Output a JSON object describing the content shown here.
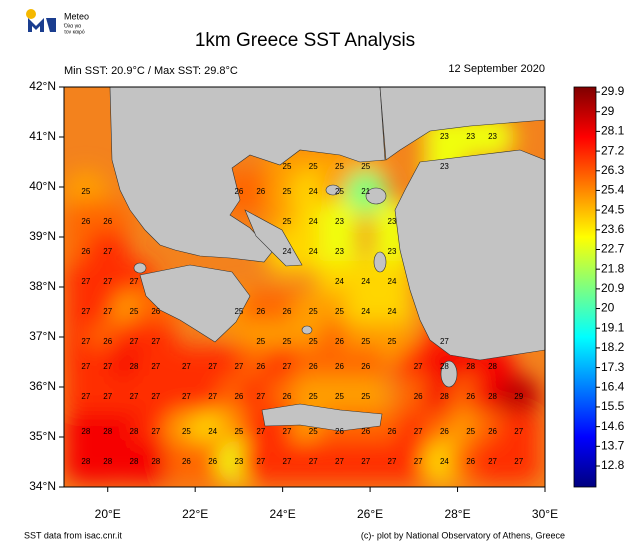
{
  "header": {
    "brand": "Meteo",
    "tagline_1": "Όλα για",
    "tagline_2": "τον καιρό"
  },
  "chart_data": {
    "type": "map",
    "title": "1km Greece SST Analysis",
    "subtitle": "Min SST: 20.9°C / Max SST: 29.8°C",
    "date": "12 September 2020",
    "xlim": [
      19,
      30
    ],
    "ylim": [
      34,
      42
    ],
    "xticks": [
      {
        "value": 20,
        "label": "20°E"
      },
      {
        "value": 22,
        "label": "22°E"
      },
      {
        "value": 24,
        "label": "24°E"
      },
      {
        "value": 26,
        "label": "26°E"
      },
      {
        "value": 28,
        "label": "28°E"
      },
      {
        "value": 30,
        "label": "30°E"
      }
    ],
    "yticks": [
      {
        "value": 42,
        "label": "42°N"
      },
      {
        "value": 41,
        "label": "41°N"
      },
      {
        "value": 40,
        "label": "40°N"
      },
      {
        "value": 39,
        "label": "39°N"
      },
      {
        "value": 38,
        "label": "38°N"
      },
      {
        "value": 37,
        "label": "37°N"
      },
      {
        "value": 36,
        "label": "36°N"
      },
      {
        "value": 35,
        "label": "35°N"
      },
      {
        "value": 34,
        "label": "34°N"
      }
    ],
    "colorbar_lim": [
      11.84,
      30.13
    ],
    "colorbar_ticks": [
      29.9,
      29,
      28.1,
      27.2,
      26.3,
      25.4,
      24.5,
      23.6,
      22.7,
      21.8,
      20.9,
      20,
      19.1,
      18.2,
      17.3,
      16.4,
      15.5,
      14.6,
      13.7,
      12.8
    ],
    "colormap": [
      "#00007f",
      "#0000ff",
      "#007fff",
      "#00ffff",
      "#7fff7f",
      "#ffff00",
      "#ff7f00",
      "#ff0000",
      "#7f0000"
    ],
    "grid_lons": [
      19.5,
      20.0,
      20.6,
      21.1,
      21.8,
      22.4,
      23.0,
      23.5,
      24.1,
      24.7,
      25.3,
      25.9,
      26.5,
      27.1,
      27.7,
      28.3,
      28.8,
      29.4
    ],
    "grid_lats": [
      41.0,
      40.4,
      39.9,
      39.3,
      38.7,
      38.1,
      37.5,
      36.9,
      36.4,
      35.8,
      35.1,
      34.5
    ],
    "values": [
      [
        null,
        null,
        null,
        null,
        null,
        null,
        null,
        null,
        null,
        null,
        null,
        null,
        null,
        null,
        23,
        23,
        23,
        null
      ],
      [
        null,
        null,
        null,
        null,
        null,
        null,
        null,
        null,
        25,
        25,
        25,
        25,
        null,
        null,
        23,
        null,
        null,
        null
      ],
      [
        25,
        null,
        null,
        null,
        null,
        null,
        26,
        26,
        25,
        24,
        25,
        21,
        null,
        null,
        null,
        null,
        null,
        null
      ],
      [
        26,
        26,
        null,
        null,
        null,
        null,
        null,
        null,
        25,
        24,
        23,
        null,
        23,
        null,
        null,
        null,
        null,
        null
      ],
      [
        26,
        27,
        null,
        null,
        null,
        null,
        null,
        null,
        24,
        24,
        23,
        null,
        23,
        null,
        null,
        null,
        null,
        null
      ],
      [
        27,
        27,
        27,
        null,
        null,
        null,
        null,
        null,
        null,
        null,
        24,
        24,
        24,
        null,
        null,
        null,
        null,
        null
      ],
      [
        27,
        27,
        25,
        26,
        null,
        null,
        25,
        26,
        26,
        25,
        25,
        24,
        24,
        null,
        null,
        null,
        null,
        null
      ],
      [
        27,
        26,
        27,
        27,
        null,
        null,
        null,
        25,
        25,
        25,
        26,
        25,
        25,
        null,
        27,
        null,
        null,
        null
      ],
      [
        27,
        27,
        28,
        27,
        27,
        27,
        27,
        26,
        27,
        26,
        26,
        26,
        null,
        27,
        28,
        28,
        28,
        null
      ],
      [
        27,
        27,
        27,
        27,
        27,
        27,
        26,
        27,
        26,
        25,
        25,
        25,
        null,
        26,
        28,
        26,
        28,
        29
      ],
      [
        28,
        28,
        28,
        27,
        25,
        24,
        25,
        27,
        27,
        25,
        26,
        26,
        26,
        27,
        26,
        25,
        26,
        27
      ],
      [
        28,
        28,
        28,
        28,
        26,
        26,
        23,
        27,
        27,
        27,
        27,
        27,
        27,
        27,
        24,
        26,
        27,
        27
      ]
    ]
  },
  "footer": {
    "left": "SST data from isac.cnr.it",
    "right": "(c)- plot by National Observatory of Athens, Greece"
  }
}
